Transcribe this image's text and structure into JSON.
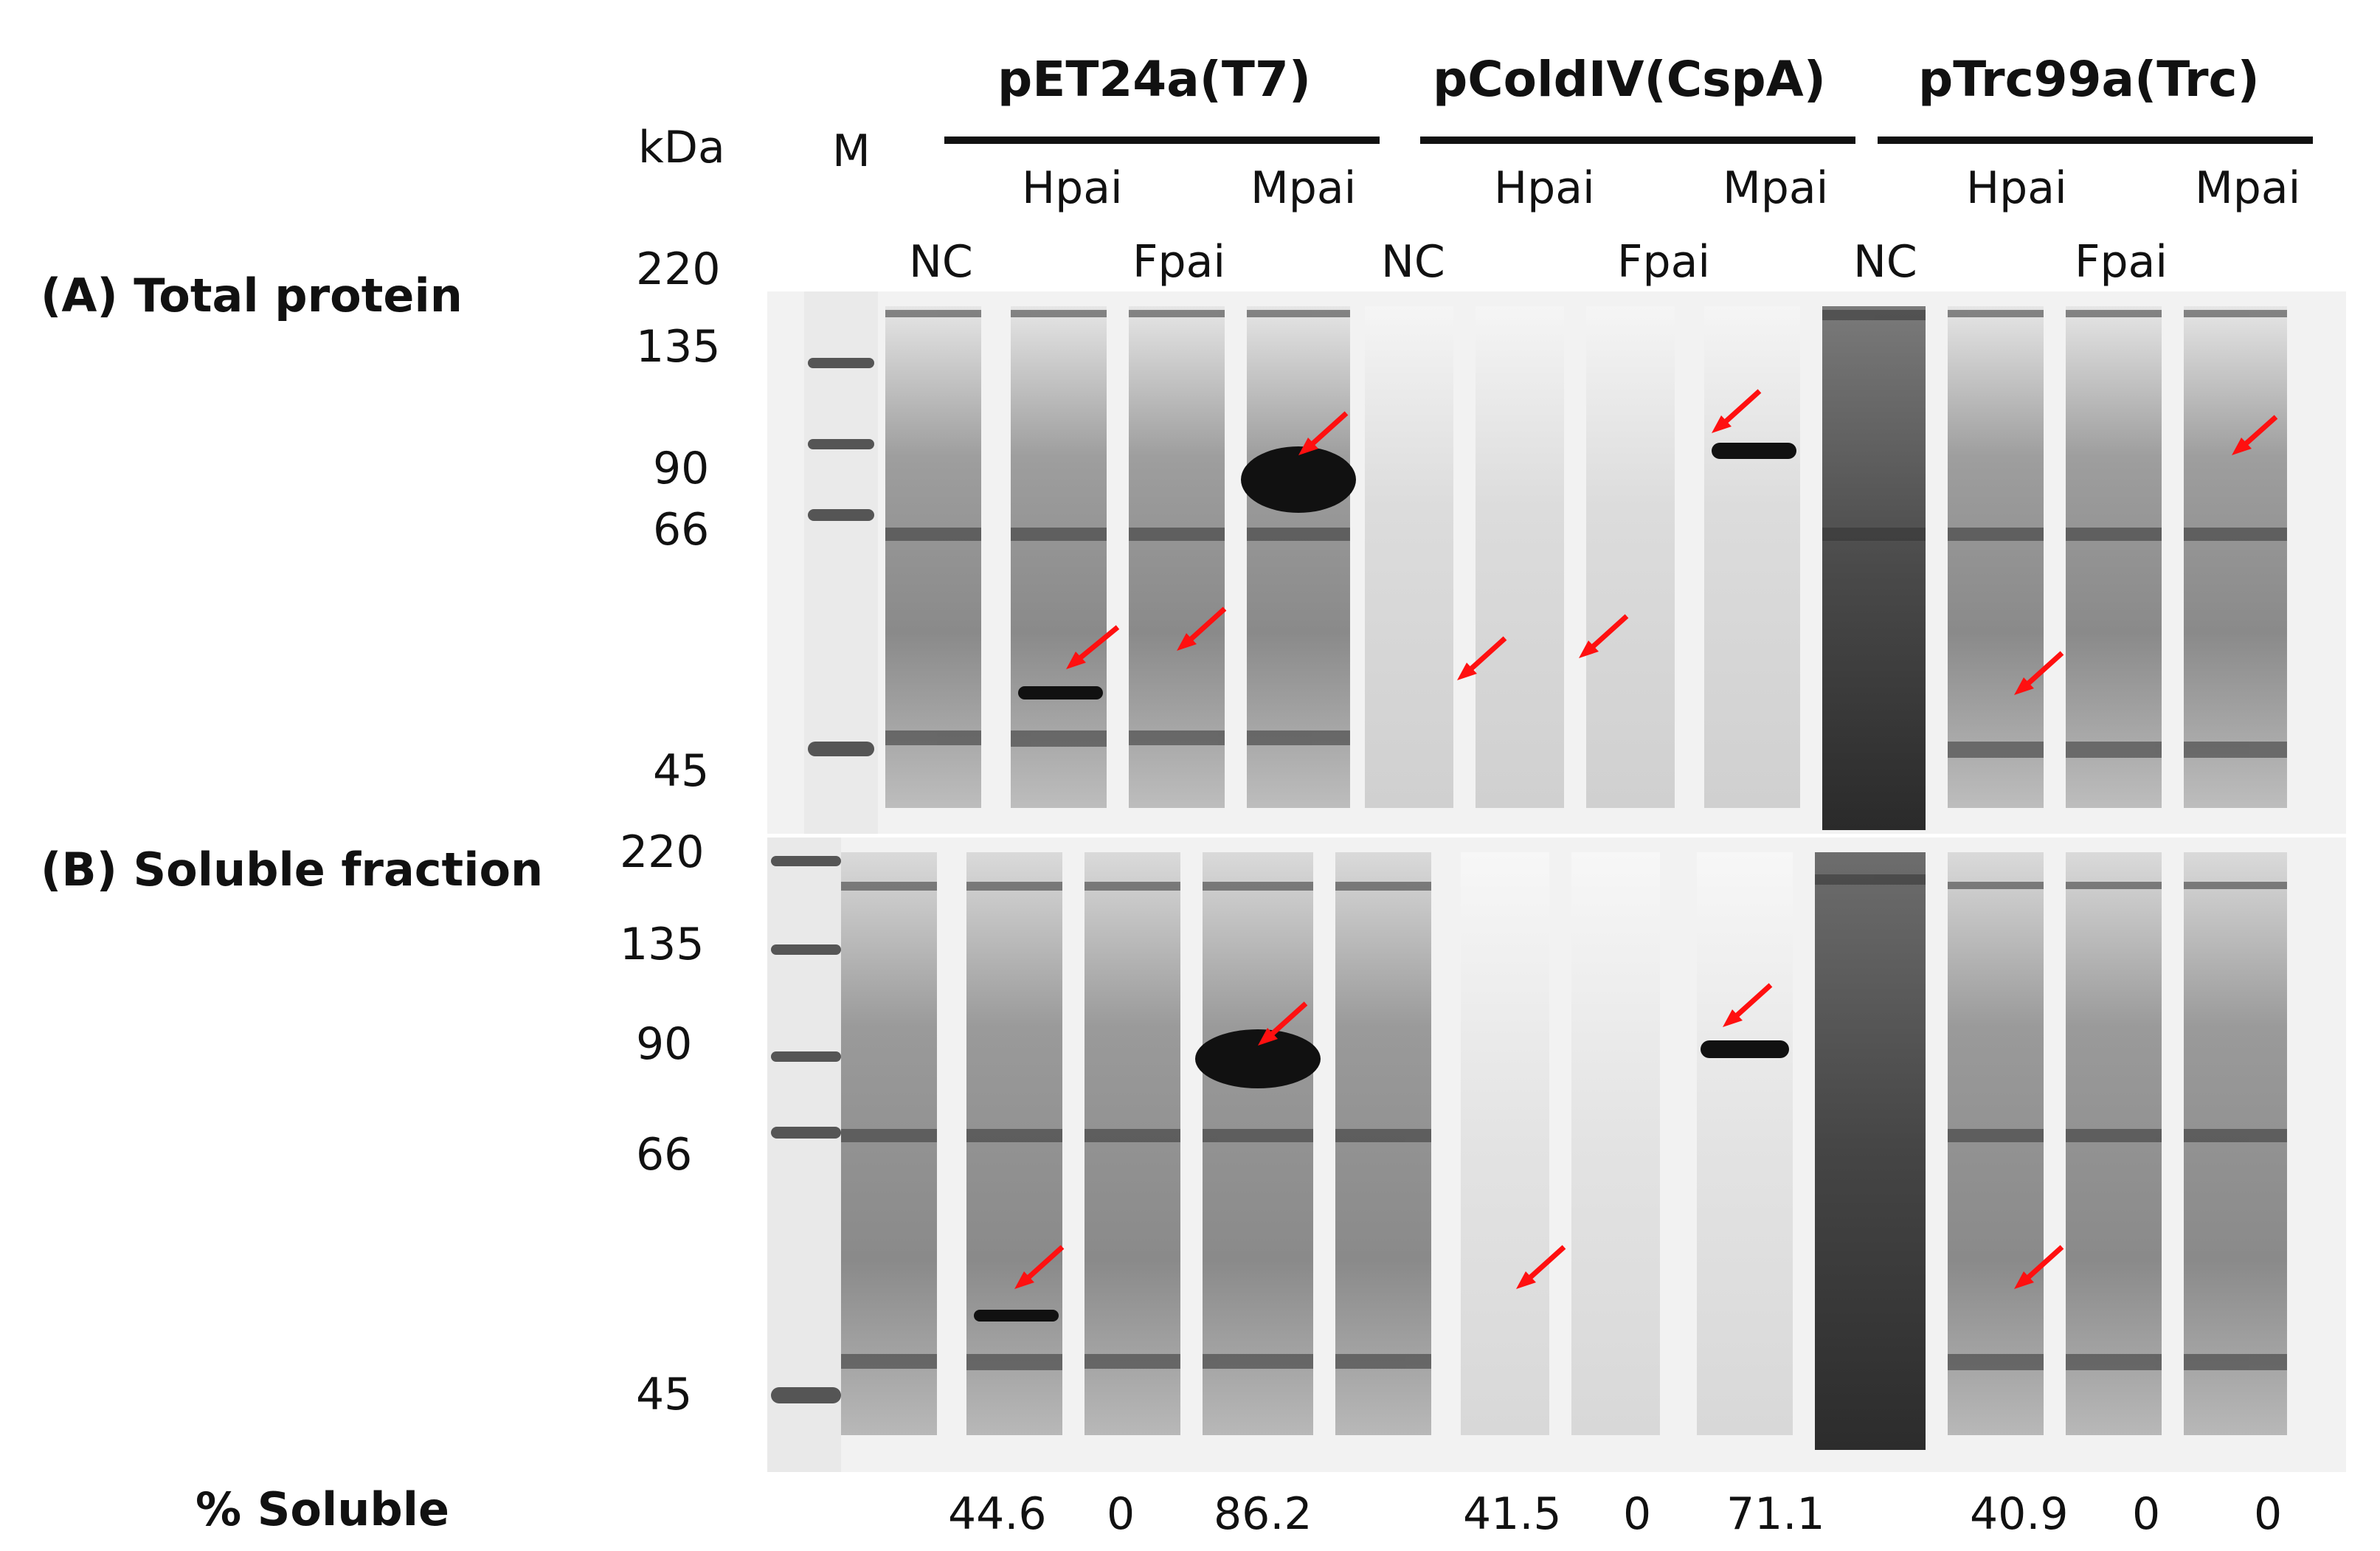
{
  "groups": [
    {
      "title": "pET24a(T7)"
    },
    {
      "title": "pColdIV(CspA)"
    },
    {
      "title": "pTrc99a(Trc)"
    }
  ],
  "header": {
    "kda": "kDa",
    "marker": "M",
    "lanes_top": [
      "Hpai",
      "Mpai",
      "Hpai",
      "Mpai",
      "Hpai",
      "Mpai"
    ],
    "lanes_bottom": [
      "NC",
      "Fpai",
      "NC",
      "Fpai",
      "NC",
      "Fpai"
    ]
  },
  "panel_a": {
    "label": "(A) Total protein",
    "markers": [
      "220",
      "135",
      "90",
      "66",
      "45"
    ]
  },
  "panel_b": {
    "label": "(B) Soluble fraction",
    "markers": [
      "220",
      "135",
      "90",
      "66",
      "45"
    ]
  },
  "soluble": {
    "label": "% Soluble",
    "values": [
      "44.6",
      "0",
      "86.2",
      "41.5",
      "0",
      "71.1",
      "40.9",
      "0",
      "0"
    ]
  },
  "colors": {
    "arrow": "#ff1010",
    "band_dark": "#111111",
    "gel_background": "#f2f2f2"
  }
}
